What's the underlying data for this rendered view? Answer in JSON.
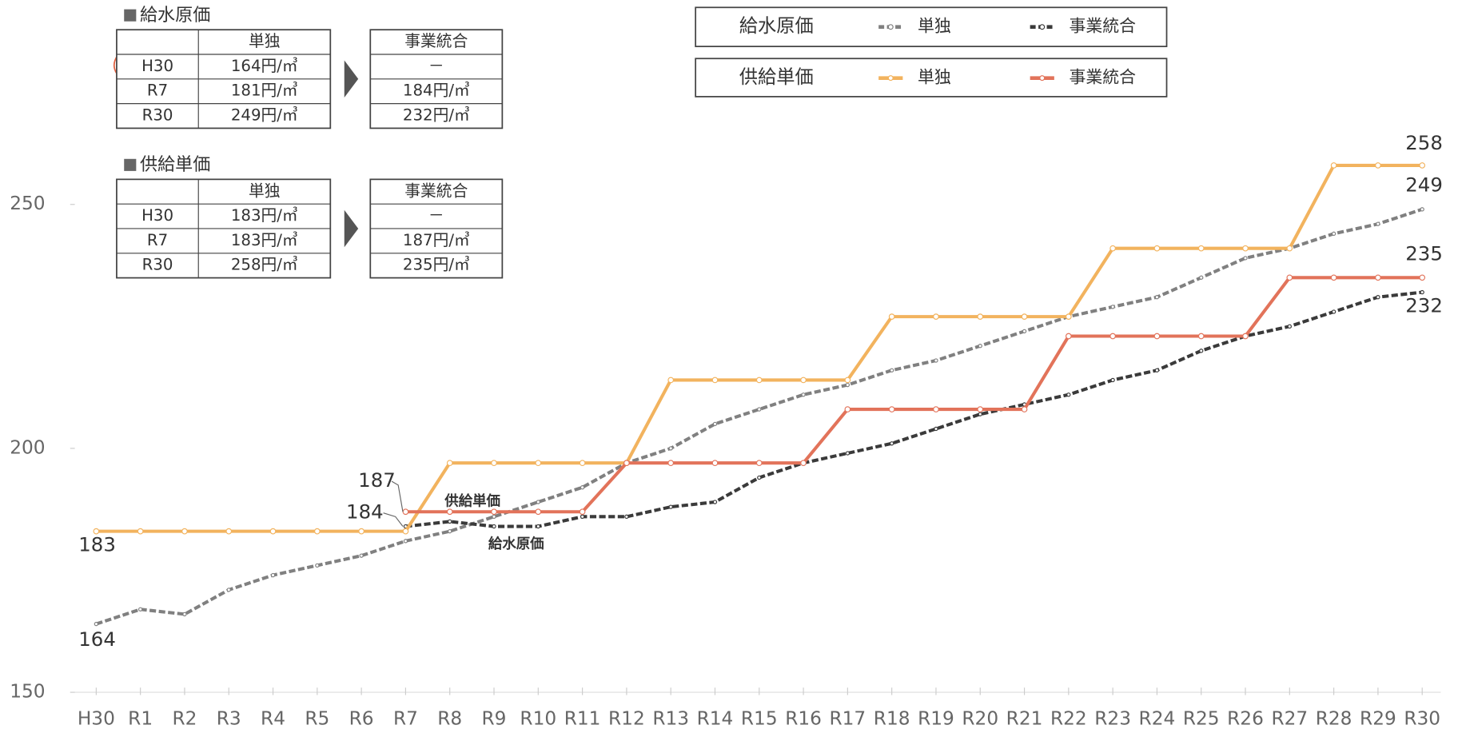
{
  "chart_data": {
    "type": "line",
    "categories": [
      "H30",
      "R1",
      "R2",
      "R3",
      "R4",
      "R5",
      "R6",
      "R7",
      "R8",
      "R9",
      "R10",
      "R11",
      "R12",
      "R13",
      "R14",
      "R15",
      "R16",
      "R17",
      "R18",
      "R19",
      "R20",
      "R21",
      "R22",
      "R23",
      "R24",
      "R25",
      "R26",
      "R27",
      "R28",
      "R29",
      "R30"
    ],
    "series_groups": [
      {
        "name": "給水原価",
        "series": [
          {
            "name": "単独",
            "color": "#808080",
            "dashed": true,
            "values": [
              164,
              167,
              166,
              171,
              174,
              176,
              178,
              181,
              183,
              186,
              189,
              192,
              197,
              200,
              205,
              208,
              211,
              213,
              216,
              218,
              221,
              224,
              227,
              229,
              231,
              235,
              239,
              241,
              244,
              246,
              249
            ]
          },
          {
            "name": "事業統合",
            "color": "#3a3a3a",
            "dashed": true,
            "values": [
              null,
              null,
              null,
              null,
              null,
              null,
              null,
              184,
              185,
              184,
              184,
              186,
              186,
              188,
              189,
              194,
              197,
              199,
              201,
              204,
              207,
              209,
              211,
              214,
              216,
              220,
              223,
              225,
              228,
              231,
              232
            ]
          }
        ]
      },
      {
        "name": "供給単価",
        "series": [
          {
            "name": "単独",
            "color": "#f2b35e",
            "dashed": false,
            "values": [
              183,
              183,
              183,
              183,
              183,
              183,
              183,
              183,
              197,
              197,
              197,
              197,
              197,
              214,
              214,
              214,
              214,
              214,
              227,
              227,
              227,
              227,
              227,
              241,
              241,
              241,
              241,
              241,
              258,
              258,
              258
            ]
          },
          {
            "name": "事業統合",
            "color": "#e2735a",
            "dashed": false,
            "values": [
              null,
              null,
              null,
              null,
              null,
              null,
              null,
              187,
              187,
              187,
              187,
              187,
              197,
              197,
              197,
              197,
              197,
              208,
              208,
              208,
              208,
              208,
              223,
              223,
              223,
              223,
              223,
              235,
              235,
              235,
              235
            ]
          }
        ]
      }
    ],
    "annotations": [
      {
        "text": "供給単価",
        "color": "#e2735a"
      },
      {
        "text": "給水原価",
        "color": "#333333"
      }
    ],
    "ylim": [
      150,
      260
    ],
    "yticks": [
      150,
      200,
      250
    ],
    "grid": false,
    "tables": [
      {
        "title": "給水原価",
        "single_header": "単独",
        "rows": [
          [
            "H30",
            "164円/㎥"
          ],
          [
            "R7",
            "181円/㎥"
          ],
          [
            "R30",
            "249円/㎥"
          ]
        ],
        "merged_header": "事業統合",
        "merged_rows": [
          "－",
          "184円/㎥",
          "232円/㎥"
        ]
      },
      {
        "title": "供給単価",
        "single_header": "単独",
        "rows": [
          [
            "H30",
            "183円/㎥"
          ],
          [
            "R7",
            "183円/㎥"
          ],
          [
            "R30",
            "258円/㎥"
          ]
        ],
        "merged_header": "事業統合",
        "merged_rows": [
          "－",
          "187円/㎥",
          "235円/㎥"
        ]
      }
    ]
  }
}
